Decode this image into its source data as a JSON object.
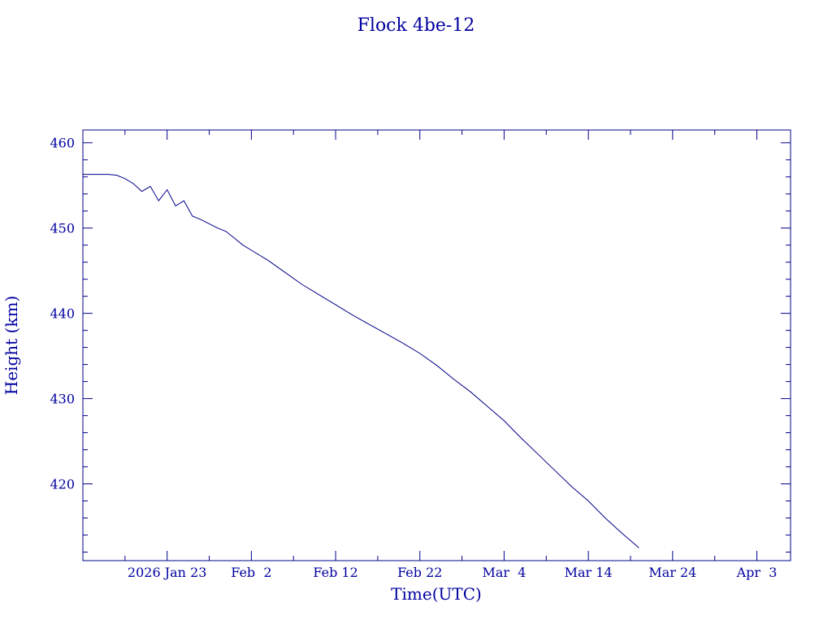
{
  "chart_data": {
    "type": "line",
    "title": "Flock 4be-12",
    "xlabel": "Time(UTC)",
    "ylabel": "Height (km)",
    "color": "#00008b",
    "xlim": [
      "2026-01-13",
      "2026-04-07"
    ],
    "ylim": [
      411,
      461.5
    ],
    "grid": false,
    "x_ticks": [
      {
        "date": "2026-01-23",
        "label": "2026 Jan 23"
      },
      {
        "date": "2026-02-02",
        "label": "Feb  2"
      },
      {
        "date": "2026-02-12",
        "label": "Feb 12"
      },
      {
        "date": "2026-02-22",
        "label": "Feb 22"
      },
      {
        "date": "2026-03-04",
        "label": "Mar  4"
      },
      {
        "date": "2026-03-14",
        "label": "Mar 14"
      },
      {
        "date": "2026-03-24",
        "label": "Mar 24"
      },
      {
        "date": "2026-04-03",
        "label": "Apr  3"
      }
    ],
    "y_ticks": [
      420,
      430,
      440,
      450,
      460
    ],
    "series": [
      {
        "x": [
          "2026-01-13",
          "2026-01-14",
          "2026-01-15",
          "2026-01-16",
          "2026-01-17",
          "2026-01-18",
          "2026-01-19",
          "2026-01-20",
          "2026-01-21",
          "2026-01-22",
          "2026-01-23",
          "2026-01-24",
          "2026-01-25",
          "2026-01-26",
          "2026-01-27",
          "2026-01-28",
          "2026-01-29",
          "2026-01-30",
          "2026-01-31",
          "2026-02-01",
          "2026-02-02",
          "2026-02-04",
          "2026-02-06",
          "2026-02-08",
          "2026-02-10",
          "2026-02-12",
          "2026-02-14",
          "2026-02-16",
          "2026-02-18",
          "2026-02-20",
          "2026-02-22",
          "2026-02-24",
          "2026-02-26",
          "2026-02-28",
          "2026-03-02",
          "2026-03-04",
          "2026-03-06",
          "2026-03-08",
          "2026-03-10",
          "2026-03-12",
          "2026-03-14",
          "2026-03-16",
          "2026-03-18",
          "2026-03-20"
        ],
        "y": [
          456.3,
          456.3,
          456.3,
          456.3,
          456.2,
          455.8,
          455.2,
          454.3,
          454.9,
          453.2,
          454.5,
          452.6,
          453.2,
          451.4,
          451.0,
          450.5,
          450.0,
          449.6,
          448.8,
          448.0,
          447.4,
          446.2,
          444.8,
          443.4,
          442.2,
          441.0,
          439.8,
          438.7,
          437.6,
          436.5,
          435.3,
          433.9,
          432.3,
          430.8,
          429.1,
          427.4,
          425.4,
          423.5,
          421.6,
          419.7,
          418.0,
          416.0,
          414.2,
          412.5
        ]
      }
    ]
  }
}
